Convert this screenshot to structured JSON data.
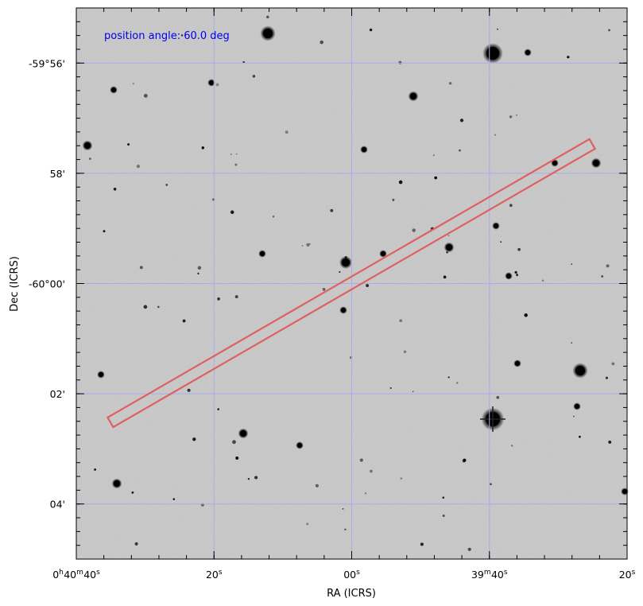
{
  "chart_data": {
    "type": "sky-image",
    "xlabel": "RA (ICRS)",
    "ylabel": "Dec (ICRS)",
    "annotation": "position angle: 60.0 deg",
    "ra_ticks": [
      {
        "main": "0",
        "sup1": "h",
        "mid": "40",
        "sup2": "m",
        "tail": "40",
        "sup3": "s",
        "value_sec": 2440
      },
      {
        "main": "20",
        "sup1": "s",
        "mid": "",
        "sup2": "",
        "tail": "",
        "sup3": "",
        "value_sec": 2420
      },
      {
        "main": "00",
        "sup1": "s",
        "mid": "",
        "sup2": "",
        "tail": "",
        "sup3": "",
        "value_sec": 2400
      },
      {
        "main": "39",
        "sup1": "m",
        "mid": "40",
        "sup2": "s",
        "tail": "",
        "sup3": "",
        "value_sec": 2380
      },
      {
        "main": "20",
        "sup1": "s",
        "mid": "",
        "sup2": "",
        "tail": "",
        "sup3": "",
        "value_sec": 2360
      }
    ],
    "dec_ticks": [
      {
        "label": "-59°56'",
        "value_arcmin": -3596
      },
      {
        "label": "58'",
        "value_arcmin": -3598
      },
      {
        "label": "-60°00'",
        "value_arcmin": -3600
      },
      {
        "label": "02'",
        "value_arcmin": -3602
      },
      {
        "label": "04'",
        "value_arcmin": -3604
      }
    ],
    "ra_range_sec": [
      2440,
      2360
    ],
    "dec_range_arcmin": [
      -3595.0,
      -3605.0
    ],
    "grid": true,
    "grid_color": "#aaaaee",
    "rectangle": {
      "position_angle_deg": 60.0,
      "color": "#e06060"
    },
    "colors": {
      "annotation": "#0000ee",
      "background": "#c8c8c8",
      "star": "#000000"
    }
  }
}
